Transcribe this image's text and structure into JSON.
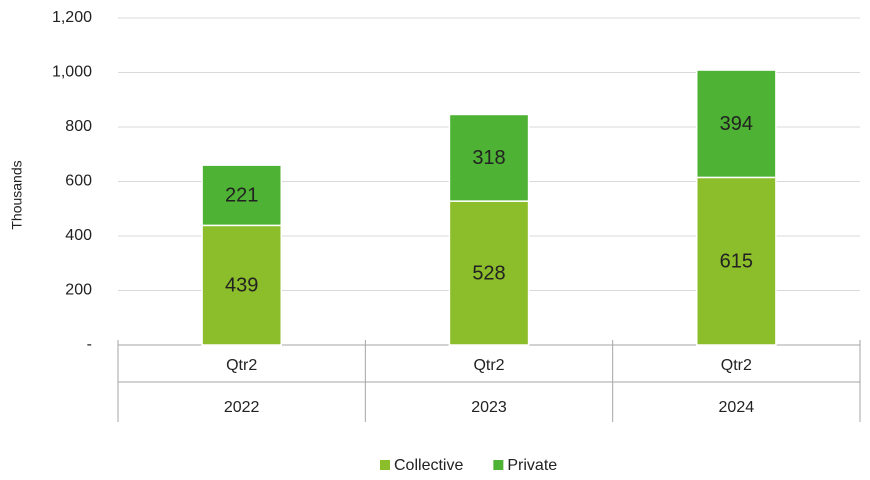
{
  "chart_data": {
    "type": "stacked_bar",
    "y_label": "Thousands",
    "categories": [
      "Qtr2",
      "Qtr2",
      "Qtr2"
    ],
    "category_groups": [
      "2022",
      "2023",
      "2024"
    ],
    "series": [
      {
        "name": "Collective",
        "color": "#8cbd2a",
        "values": [
          439,
          528,
          615
        ]
      },
      {
        "name": "Private",
        "color": "#4eb234",
        "values": [
          221,
          318,
          394
        ]
      }
    ],
    "ylim": [
      0,
      1200
    ],
    "yticks": [
      {
        "value": 0,
        "label": "-"
      },
      200,
      400,
      600,
      800,
      {
        "value": 1000,
        "label": "1,000"
      },
      {
        "value": 1200,
        "label": "1,200"
      }
    ],
    "grid": true,
    "legend": "bottom"
  }
}
